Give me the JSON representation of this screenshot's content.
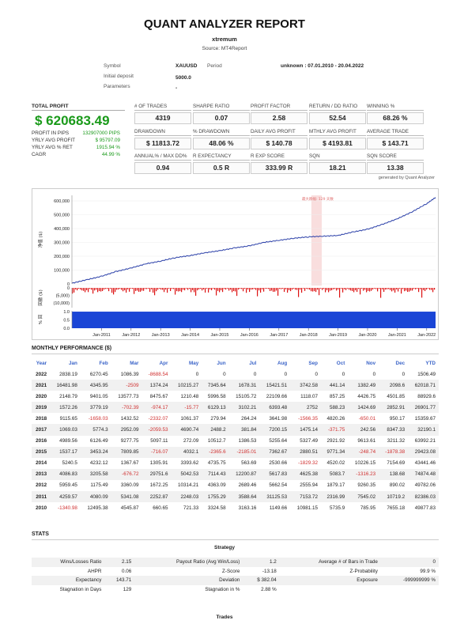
{
  "report": {
    "title": "QUANT ANALYZER REPORT",
    "strategy_name": "xtremum",
    "source": "Source: MT4Report"
  },
  "info": {
    "symbol_label": "Symbol",
    "symbol": "XAUUSD",
    "period_label": "Period",
    "period": "unknown : 07.01.2010 - 20.04.2022",
    "deposit_label": "Initial deposit",
    "deposit": "5000.0",
    "params_label": "Parameters",
    "params": "-"
  },
  "total": {
    "label": "TOTAL PROFIT",
    "value": "$ 620683.49",
    "rows": [
      {
        "label": "PROFIT IN PIPS",
        "value": "132907000 PIPS"
      },
      {
        "label": "YRLY AVG PROFIT",
        "value": "$ 95797.09"
      },
      {
        "label": "YRLY AVG % RET",
        "value": "1915.94 %"
      },
      {
        "label": "CAGR",
        "value": "44.99 %"
      }
    ]
  },
  "metrics": [
    {
      "label": "# OF TRADES",
      "value": "4319"
    },
    {
      "label": "SHARPE RATIO",
      "value": "0.07"
    },
    {
      "label": "PROFIT FACTOR",
      "value": "2.58"
    },
    {
      "label": "RETURN / DD RATIO",
      "value": "52.54"
    },
    {
      "label": "WINNING %",
      "value": "68.26 %"
    },
    {
      "label": "DRAWDOWN",
      "value": "$ 11813.72"
    },
    {
      "label": "% DRAWDOWN",
      "value": "48.06 %"
    },
    {
      "label": "DAILY AVG PROFIT",
      "value": "$ 140.78"
    },
    {
      "label": "MTHLY AVG PROFIT",
      "value": "$ 4193.81"
    },
    {
      "label": "AVERAGE TRADE",
      "value": "$ 143.71"
    },
    {
      "label": "ANNUAL% / MAX DD%",
      "value": "0.94"
    },
    {
      "label": "R EXPECTANCY",
      "value": "0.5 R"
    },
    {
      "label": "R EXP SCORE",
      "value": "333.99 R"
    },
    {
      "label": "SQN",
      "value": "18.21"
    },
    {
      "label": "SQN SCORE",
      "value": "13.38"
    }
  ],
  "generated_by": "generated by Quant Analyzer",
  "chart_data": {
    "type": "line",
    "title": "",
    "annotation": "最大跌幅: 129 天数",
    "panels": [
      {
        "ylabel": "净值 ($)",
        "y_ticks": [
          "600,000",
          "500,000",
          "400,000",
          "300,000",
          "200,000",
          "100,000",
          "0"
        ],
        "ylim": [
          0,
          640000
        ]
      },
      {
        "ylabel": "回撤 ($)",
        "y_ticks": [
          "0",
          "(5,000)",
          "(10,000)"
        ],
        "ylim": [
          -13000,
          0
        ]
      },
      {
        "ylabel": "% 回",
        "y_ticks": [
          "1.0",
          "0.5",
          "0.0"
        ],
        "ylim": [
          0,
          1.05
        ]
      }
    ],
    "x_ticks": [
      "Jan-2011",
      "Jan-2012",
      "Jan-2013",
      "Jan-2014",
      "Jan-2015",
      "Jan-2016",
      "Jan-2017",
      "Jan-2018",
      "Jan-2019",
      "Jan-2020",
      "Jan-2021",
      "Jan-2022"
    ],
    "equity": {
      "x": [
        2010.0,
        2010.5,
        2011.0,
        2011.5,
        2012.0,
        2012.5,
        2013.0,
        2013.5,
        2014.0,
        2014.5,
        2015.0,
        2015.5,
        2016.0,
        2016.5,
        2017.0,
        2017.5,
        2018.0,
        2018.5,
        2019.0,
        2019.5,
        2020.0,
        2020.5,
        2021.0,
        2021.5,
        2022.0,
        2022.3
      ],
      "y": [
        5000,
        30000,
        55000,
        90000,
        115000,
        145000,
        165000,
        190000,
        205000,
        225000,
        240000,
        260000,
        275000,
        300000,
        315000,
        330000,
        340000,
        345000,
        350000,
        375000,
        395000,
        430000,
        470000,
        520000,
        580000,
        625000
      ]
    },
    "drawdown_highlight": [
      2018.1,
      2018.45
    ]
  },
  "monthly": {
    "title": "MONTHLY PERFORMANCE ($)",
    "headers": [
      "Year",
      "Jan",
      "Feb",
      "Mar",
      "Apr",
      "May",
      "Jun",
      "Jul",
      "Aug",
      "Sep",
      "Oct",
      "Nov",
      "Dec",
      "YTD"
    ],
    "rows": [
      [
        "2022",
        "2838.19",
        "6270.45",
        "1086.39",
        "-8688.54",
        "0",
        "0",
        "0",
        "0",
        "0",
        "0",
        "0",
        "0",
        "1506.49"
      ],
      [
        "2021",
        "16481.98",
        "4345.95",
        "-2509",
        "1374.24",
        "10215.27",
        "7345.64",
        "1678.31",
        "15421.51",
        "3742.58",
        "441.14",
        "1382.49",
        "2098.6",
        "62018.71"
      ],
      [
        "2020",
        "2148.79",
        "9401.05",
        "13577.73",
        "8475.67",
        "1210.48",
        "5996.58",
        "15105.72",
        "22109.66",
        "1118.07",
        "857.25",
        "4426.75",
        "4501.85",
        "88929.6"
      ],
      [
        "2019",
        "1572.26",
        "3779.19",
        "-702.39",
        "-974.17",
        "-15.77",
        "6129.13",
        "3102.21",
        "6393.48",
        "2752",
        "588.23",
        "1424.69",
        "2852.91",
        "26901.77"
      ],
      [
        "2018",
        "9115.65",
        "-1658.03",
        "1432.52",
        "-2332.07",
        "1061.37",
        "279.94",
        "264.24",
        "3641.98",
        "-1566.35",
        "4820.26",
        "-650.01",
        "950.17",
        "15359.67"
      ],
      [
        "2017",
        "1069.03",
        "5774.3",
        "2952.09",
        "-2059.53",
        "4690.74",
        "2488.2",
        "381.84",
        "7200.15",
        "1475.14",
        "-371.75",
        "242.56",
        "8347.33",
        "32190.1"
      ],
      [
        "2016",
        "4989.56",
        "6126.49",
        "9277.75",
        "5097.11",
        "272.09",
        "10512.7",
        "1386.53",
        "5255.64",
        "5327.49",
        "2921.92",
        "9613.61",
        "3211.32",
        "63992.21"
      ],
      [
        "2015",
        "1537.17",
        "3453.24",
        "7809.85",
        "-716.07",
        "4032.1",
        "-2365.6",
        "-2185.01",
        "7362.67",
        "2880.51",
        "9771.34",
        "-248.74",
        "-1878.38",
        "29423.08"
      ],
      [
        "2014",
        "5240.5",
        "4232.12",
        "1367.67",
        "1305.91",
        "3393.62",
        "4735.75",
        "563.69",
        "2530.66",
        "-1829.32",
        "4520.02",
        "10226.15",
        "7154.69",
        "43441.46"
      ],
      [
        "2013",
        "4086.83",
        "3205.58",
        "-676.72",
        "29751.6",
        "5042.53",
        "7114.43",
        "12200.87",
        "5617.83",
        "4625.38",
        "5083.7",
        "-1316.23",
        "138.68",
        "74874.48"
      ],
      [
        "2012",
        "5959.45",
        "1175.49",
        "3360.09",
        "1672.25",
        "10314.21",
        "4363.09",
        "2689.46",
        "5662.54",
        "2555.94",
        "1879.17",
        "9260.35",
        "890.02",
        "49782.06"
      ],
      [
        "2011",
        "4259.57",
        "4080.09",
        "5341.08",
        "2252.87",
        "2248.03",
        "1755.29",
        "3588.64",
        "31125.53",
        "7153.72",
        "2316.99",
        "7545.02",
        "10719.2",
        "82386.03"
      ],
      [
        "2010",
        "-1340.98",
        "12495.38",
        "4545.87",
        "660.65",
        "721.33",
        "3324.58",
        "3163.16",
        "1149.66",
        "10981.15",
        "5735.9",
        "785.95",
        "7655.18",
        "49877.83"
      ]
    ]
  },
  "stats": {
    "title": "STATS",
    "strategy_label": "Strategy",
    "rows": [
      [
        "Wins/Losses Ratio",
        "2.15",
        "Payout Ratio (Avg Win/Loss)",
        "1.2",
        "Average # of Bars in Trade",
        "0"
      ],
      [
        "AHPR",
        "0.06",
        "Z-Score",
        "-13.18",
        "Z-Probability",
        "99.9 %"
      ],
      [
        "Expectancy",
        "143.71",
        "Deviation",
        "$ 382.04",
        "Exposure",
        "-999999999 %"
      ],
      [
        "Stagnation in Days",
        "129",
        "Stagnation in %",
        "2.88 %",
        "",
        ""
      ]
    ],
    "trades_label": "Trades"
  }
}
